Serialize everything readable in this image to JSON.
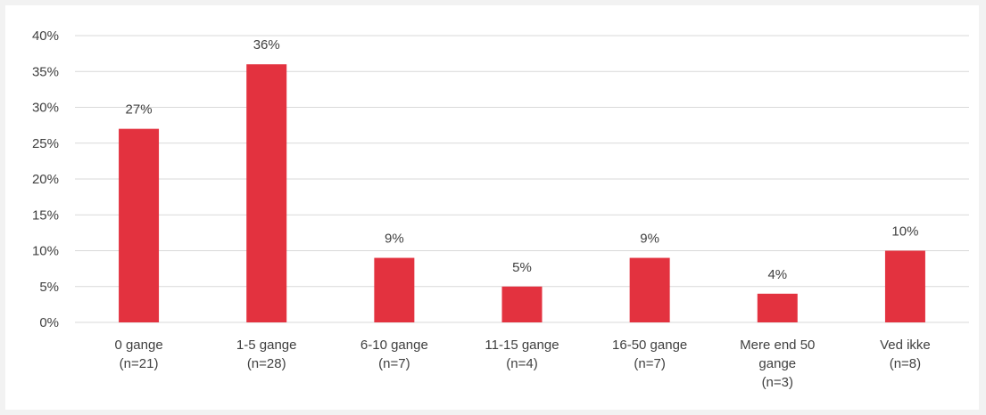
{
  "chart_data": {
    "type": "bar",
    "categories": [
      [
        "0 gange",
        "(n=21)"
      ],
      [
        "1-5 gange",
        "(n=28)"
      ],
      [
        "6-10 gange",
        "(n=7)"
      ],
      [
        "11-15 gange",
        "(n=4)"
      ],
      [
        "16-50 gange",
        "(n=7)"
      ],
      [
        "Mere end 50",
        "gange",
        "(n=3)"
      ],
      [
        "Ved ikke",
        "(n=8)"
      ]
    ],
    "values": [
      27,
      36,
      9,
      5,
      9,
      4,
      10
    ],
    "data_labels": [
      "27%",
      "36%",
      "9%",
      "5%",
      "9%",
      "4%",
      "10%"
    ],
    "y_ticks": [
      "0%",
      "5%",
      "10%",
      "15%",
      "20%",
      "25%",
      "30%",
      "35%",
      "40%"
    ],
    "ylim": [
      0,
      40
    ],
    "y_unit": "%",
    "grid": true,
    "legend": "none",
    "bar_color": "#e3323f",
    "grid_color": "#d9d9d9"
  }
}
